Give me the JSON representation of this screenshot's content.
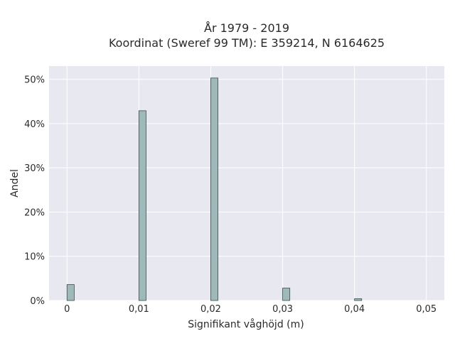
{
  "chart_data": {
    "type": "bar",
    "title_line1": "År 1979 - 2019",
    "title_line2": "Koordinat (Sweref 99 TM): E 359214, N 6164625",
    "xlabel": "Signifikant våghöjd (m)",
    "ylabel": "Andel",
    "xlim": [
      -0.0025,
      0.0525
    ],
    "ylim": [
      0,
      0.53
    ],
    "x_tick_values": [
      0,
      0.01,
      0.02,
      0.03,
      0.04,
      0.05
    ],
    "x_tick_labels": [
      "0",
      "0,01",
      "0,02",
      "0,03",
      "0,04",
      "0,05"
    ],
    "y_tick_values": [
      0,
      0.1,
      0.2,
      0.3,
      0.4,
      0.5
    ],
    "y_tick_labels": [
      "0%",
      "10%",
      "20%",
      "30%",
      "40%",
      "50%"
    ],
    "bin_width": 0.001,
    "bins": [
      {
        "x": 0.0005,
        "value": 0.036
      },
      {
        "x": 0.0105,
        "value": 0.429
      },
      {
        "x": 0.0205,
        "value": 0.503
      },
      {
        "x": 0.0305,
        "value": 0.028
      },
      {
        "x": 0.0405,
        "value": 0.004
      }
    ],
    "grid": true,
    "colors": {
      "plot_background": "#e8e8f0",
      "grid": "#ffffff",
      "bar_fill": "#9fb8ba",
      "bar_stroke": "#3d4b4c"
    }
  }
}
